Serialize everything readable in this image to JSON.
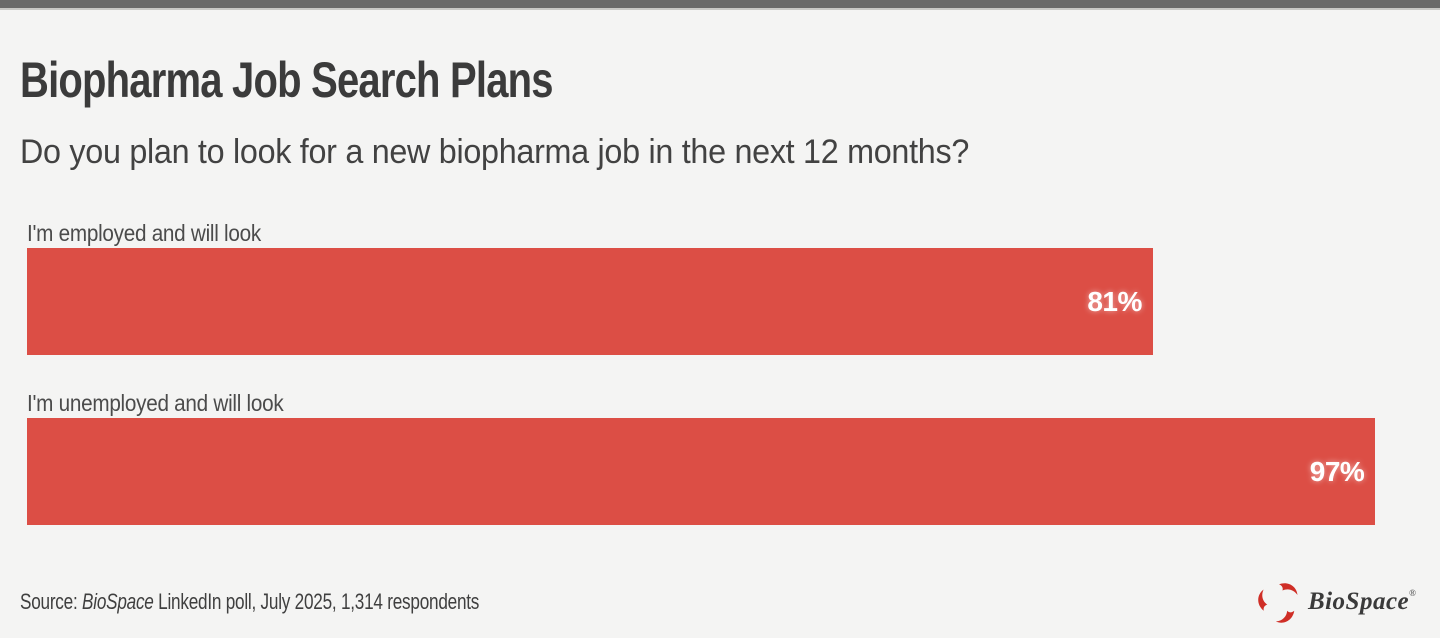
{
  "theme": {
    "background": "#f4f4f3",
    "top_bar": "#6a6a6a",
    "top_bar_line": "#c8c8c6",
    "title_color": "#3b3b3b",
    "subtitle_color": "#424242",
    "label_color": "#4b4b4b",
    "footer_color": "#3f3f3f",
    "logo_text_color": "#3a3a3a",
    "logo_icon_color": "#cf2e26"
  },
  "chart_data": {
    "type": "bar",
    "orientation": "horizontal",
    "title": "Biopharma Job Search Plans",
    "subtitle": "Do you plan to look for a new biopharma job in the next 12 months?",
    "categories": [
      "I'm employed and will look",
      "I'm unemployed and will look"
    ],
    "values": [
      81,
      97
    ],
    "value_labels": [
      "81%",
      "97%"
    ],
    "unit": "%",
    "xlim": [
      0,
      100
    ],
    "bar_color": "#dc4e45",
    "value_label_color": "#ffffff",
    "grid": false,
    "legend": false
  },
  "footer": {
    "source_prefix": "Source: ",
    "source_brand": "BioSpace",
    "source_suffix": " LinkedIn poll, July 2025, 1,314 respondents",
    "logo": {
      "text": "BioSpace",
      "registered": "®"
    }
  }
}
